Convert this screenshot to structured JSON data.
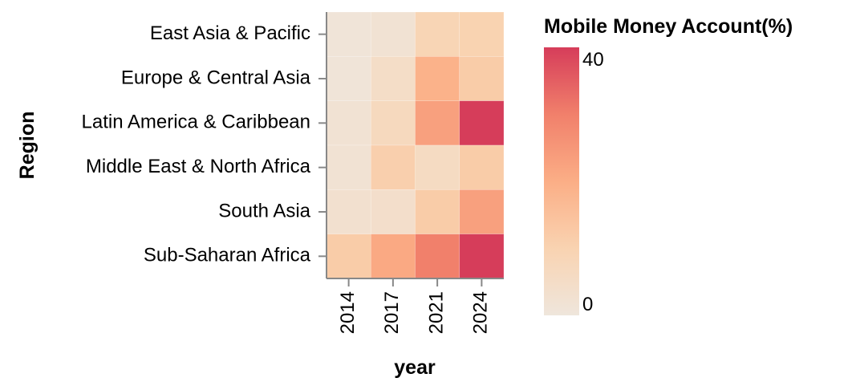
{
  "chart_data": {
    "type": "heatmap",
    "x_title": "year",
    "y_title": "Region",
    "x_categories": [
      "2014",
      "2017",
      "2021",
      "2024"
    ],
    "y_categories": [
      "East Asia & Pacific",
      "Europe & Central Asia",
      "Latin America & Caribbean",
      "Middle East & North Africa",
      "South Asia",
      "Sub-Saharan Africa"
    ],
    "values": [
      [
        1,
        2,
        9,
        10
      ],
      [
        1,
        5,
        19,
        12
      ],
      [
        2,
        7,
        23,
        40
      ],
      [
        2,
        11,
        6,
        12
      ],
      [
        3,
        4,
        12,
        23
      ],
      [
        12,
        21,
        30,
        41
      ]
    ],
    "color_range": [
      0,
      40
    ],
    "color_stops": [
      "#efe6dc",
      "#f9d3b1",
      "#fbae86",
      "#f1806b",
      "#d63d5a"
    ],
    "legend": {
      "title": "Mobile Money Account(%)",
      "min_label": "0",
      "max_label": "40",
      "placement": "right"
    }
  }
}
